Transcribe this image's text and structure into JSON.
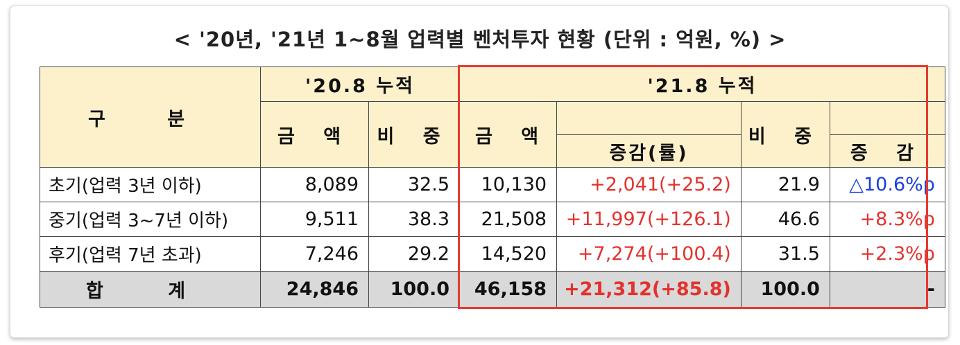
{
  "title": "< '20년, '21년 1~8월 업력별 벤처투자 현황 (단위 : 억원, %) >",
  "header": {
    "category": "구 분",
    "period_2020": "'20.8 누적",
    "period_2021": "'21.8 누적",
    "amount": "금 액",
    "share": "비 중",
    "change_rate": "증감(률)",
    "change": "증 감"
  },
  "rows": [
    {
      "label": "초기(업력 3년 이하)",
      "amt_2020": "8,089",
      "share_2020": "32.5",
      "amt_2021": "10,130",
      "change_rate": "+2,041(+25.2)",
      "share_2021": "21.9",
      "change": "△10.6%p"
    },
    {
      "label": "중기(업력 3~7년 이하)",
      "amt_2020": "9,511",
      "share_2020": "38.3",
      "amt_2021": "21,508",
      "change_rate": "+11,997(+126.1)",
      "share_2021": "46.6",
      "change": "+8.3%p"
    },
    {
      "label": "후기(업력 7년 초과)",
      "amt_2020": "7,246",
      "share_2020": "29.2",
      "amt_2021": "14,520",
      "change_rate": "+7,274(+100.4)",
      "share_2021": "31.5",
      "change": "+2.3%p"
    }
  ],
  "total": {
    "label": "합 계",
    "amt_2020": "24,846",
    "share_2020": "100.0",
    "amt_2021": "46,158",
    "change_rate": "+21,312(+85.8)",
    "share_2021": "100.0",
    "change": "-"
  },
  "colors": {
    "header_bg": "#fdf1cc",
    "total_bg": "#d9d9d9",
    "increase": "#e3322d",
    "decrease": "#1a3fd8",
    "highlight_border": "#e53a30"
  }
}
